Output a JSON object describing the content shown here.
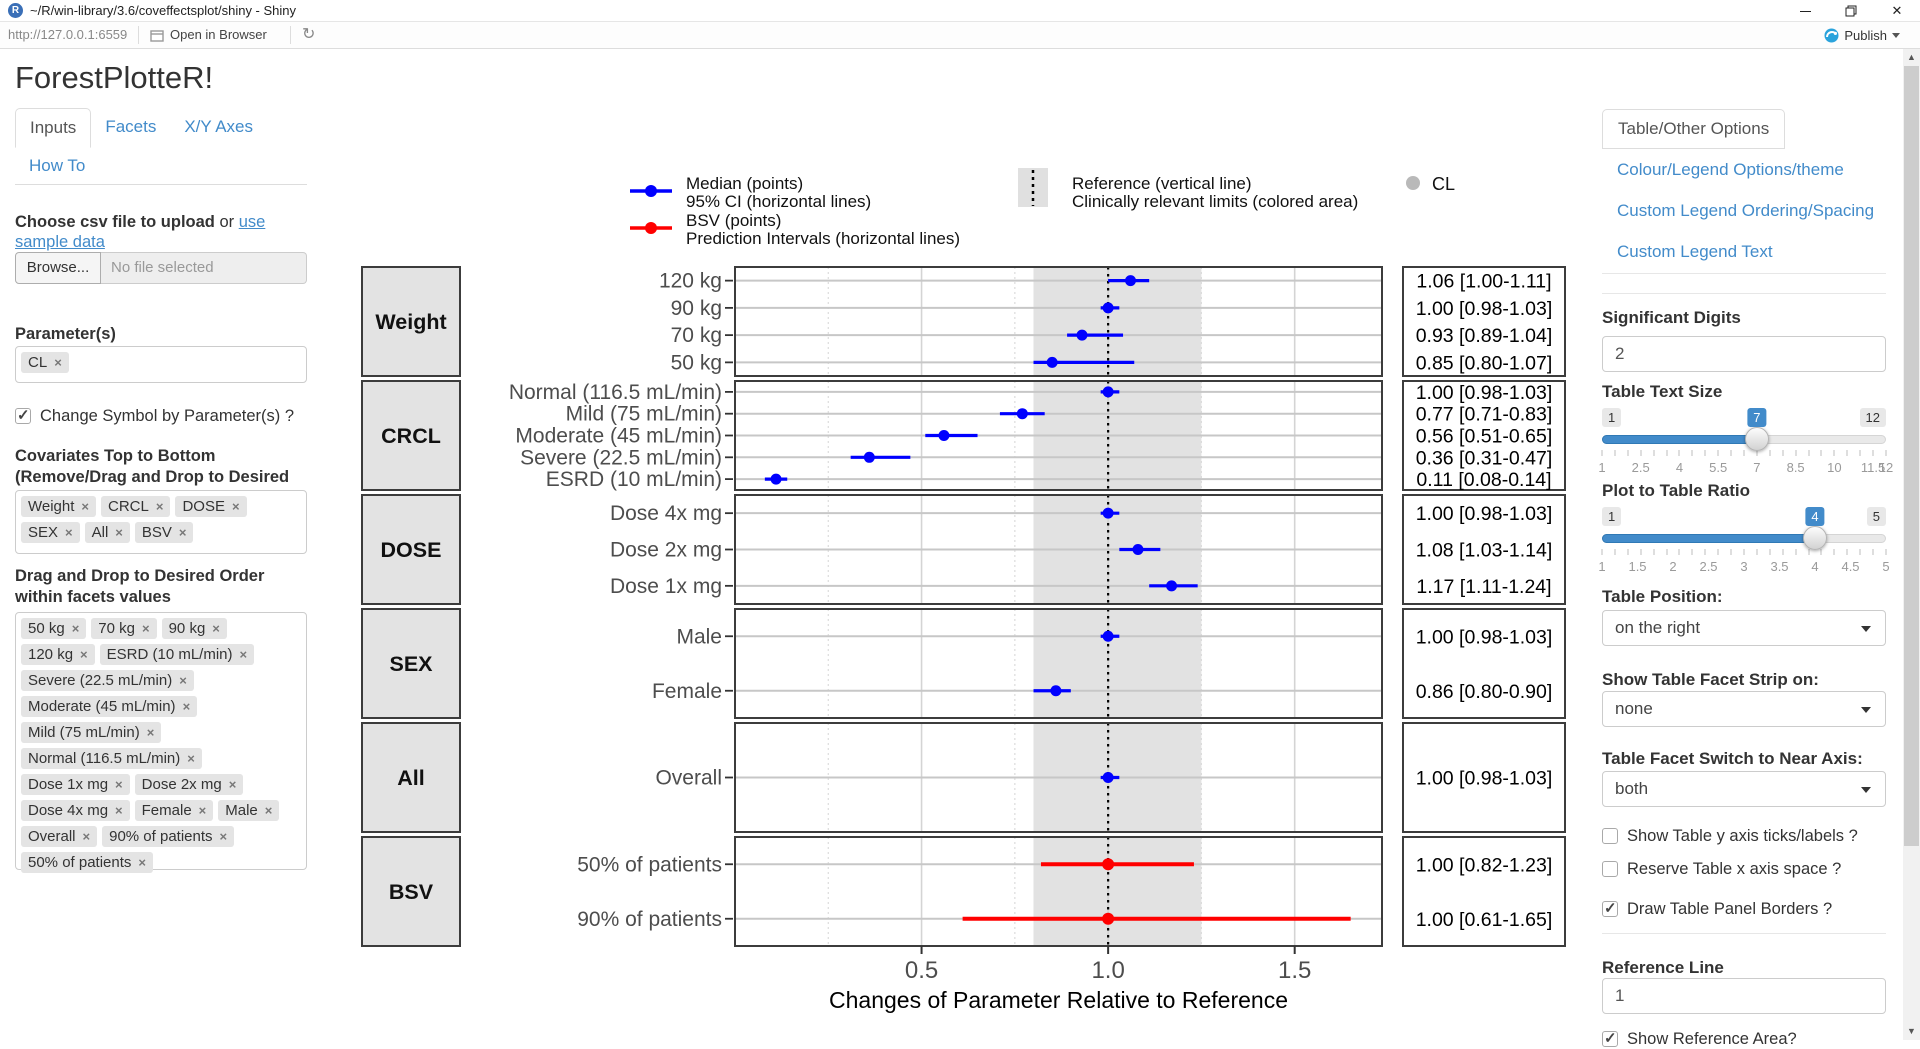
{
  "window": {
    "title": "~/R/win-library/3.6/coveffectsplot/shiny - Shiny",
    "url": "http://127.0.0.1:6559",
    "open_in_browser": "Open in Browser",
    "publish": "Publish"
  },
  "sidebar": {
    "title": "ForestPlotteR!",
    "tabs": [
      "Inputs",
      "Facets",
      "X/Y Axes",
      "How To"
    ],
    "upload_label_bold": "Choose csv file to upload",
    "upload_label_or": " or ",
    "upload_link": "use sample data",
    "browse_button": "Browse...",
    "file_placeholder": "No file selected",
    "parameters_label": "Parameter(s)",
    "parameter_tags": [
      "CL"
    ],
    "change_symbol_label": "Change Symbol by Parameter(s) ?",
    "change_symbol_checked": true,
    "covariates_label": "Covariates Top to Bottom (Remove/Drag and Drop to Desired Order):",
    "covariate_tags": [
      "Weight",
      "CRCL",
      "DOSE",
      "SEX",
      "All",
      "BSV"
    ],
    "facet_values_label": "Drag and Drop to Desired Order within facets values",
    "facet_value_tags": [
      "50 kg",
      "70 kg",
      "90 kg",
      "120 kg",
      "ESRD (10 mL/min)",
      "Severe (22.5 mL/min)",
      "Moderate (45 mL/min)",
      "Mild (75 mL/min)",
      "Normal (116.5 mL/min)",
      "Dose 1x mg",
      "Dose 2x mg",
      "Dose 4x mg",
      "Female",
      "Male",
      "Overall",
      "90% of patients",
      "50% of patients"
    ]
  },
  "rightbar": {
    "tab": "Table/Other Options",
    "links": [
      "Colour/Legend Options/theme",
      "Custom Legend Ordering/Spacing",
      "Custom Legend Text"
    ],
    "significant_digits_label": "Significant Digits",
    "significant_digits_value": "2",
    "table_text_size": {
      "label": "Table Text Size",
      "min": 1,
      "max": 12,
      "value": 7,
      "ticks": [
        "1",
        "2.5",
        "4",
        "5.5",
        "7",
        "8.5",
        "10",
        "11.5",
        "12"
      ]
    },
    "plot_table_ratio": {
      "label": "Plot to Table Ratio",
      "min": 1,
      "max": 5,
      "value": 4,
      "ticks": [
        "1",
        "1.5",
        "2",
        "2.5",
        "3",
        "3.5",
        "4",
        "4.5",
        "5"
      ]
    },
    "table_position_label": "Table Position:",
    "table_position_value": "on the right",
    "facet_strip_label": "Show Table Facet Strip on:",
    "facet_strip_value": "none",
    "facet_switch_label": "Table Facet Switch to Near Axis:",
    "facet_switch_value": "both",
    "checkboxes": [
      {
        "label": "Show Table y axis ticks/labels ?",
        "checked": false
      },
      {
        "label": "Reserve Table x axis space ?",
        "checked": false
      },
      {
        "label": "Draw Table Panel Borders ?",
        "checked": true
      }
    ],
    "reference_line_label": "Reference Line",
    "reference_line_value": "1",
    "show_reference_area_label": "Show Reference Area?"
  },
  "chart_data": {
    "type": "forest",
    "xlabel": "Changes of Parameter Relative to Reference",
    "x_ticks": [
      "0.5",
      "1.0",
      "1.5"
    ],
    "x_range": [
      0,
      1.734
    ],
    "reference_line": 1.0,
    "reference_area": [
      0.8,
      1.25
    ],
    "colors": {
      "median": "#0000ff",
      "bsv": "#ff0000",
      "area": "#e2e2e2"
    },
    "legend": {
      "median": [
        "Median (points)",
        "95% CI (horizontal lines)"
      ],
      "bsv": [
        "BSV (points)",
        "Prediction Intervals (horizontal lines)"
      ],
      "reference": [
        "Reference (vertical line)",
        "Clinically relevant limits (colored area)"
      ],
      "shape": "CL"
    },
    "facets": [
      {
        "label": "Weight",
        "series": "median",
        "rows": [
          {
            "label": "120 kg",
            "mid": 1.06,
            "lo": 1.0,
            "hi": 1.11,
            "text": "1.06 [1.00-1.11]"
          },
          {
            "label": "90 kg",
            "mid": 1.0,
            "lo": 0.98,
            "hi": 1.03,
            "text": "1.00 [0.98-1.03]"
          },
          {
            "label": "70 kg",
            "mid": 0.93,
            "lo": 0.89,
            "hi": 1.04,
            "text": "0.93 [0.89-1.04]"
          },
          {
            "label": "50 kg",
            "mid": 0.85,
            "lo": 0.8,
            "hi": 1.07,
            "text": "0.85 [0.80-1.07]"
          }
        ]
      },
      {
        "label": "CRCL",
        "series": "median",
        "rows": [
          {
            "label": "Normal (116.5 mL/min)",
            "mid": 1.0,
            "lo": 0.98,
            "hi": 1.03,
            "text": "1.00 [0.98-1.03]"
          },
          {
            "label": "Mild (75 mL/min)",
            "mid": 0.77,
            "lo": 0.71,
            "hi": 0.83,
            "text": "0.77 [0.71-0.83]"
          },
          {
            "label": "Moderate (45 mL/min)",
            "mid": 0.56,
            "lo": 0.51,
            "hi": 0.65,
            "text": "0.56 [0.51-0.65]"
          },
          {
            "label": "Severe (22.5 mL/min)",
            "mid": 0.36,
            "lo": 0.31,
            "hi": 0.47,
            "text": "0.36 [0.31-0.47]"
          },
          {
            "label": "ESRD (10 mL/min)",
            "mid": 0.11,
            "lo": 0.08,
            "hi": 0.14,
            "text": "0.11 [0.08-0.14]"
          }
        ]
      },
      {
        "label": "DOSE",
        "series": "median",
        "rows": [
          {
            "label": "Dose 4x mg",
            "mid": 1.0,
            "lo": 0.98,
            "hi": 1.03,
            "text": "1.00 [0.98-1.03]"
          },
          {
            "label": "Dose 2x mg",
            "mid": 1.08,
            "lo": 1.03,
            "hi": 1.14,
            "text": "1.08 [1.03-1.14]"
          },
          {
            "label": "Dose 1x mg",
            "mid": 1.17,
            "lo": 1.11,
            "hi": 1.24,
            "text": "1.17 [1.11-1.24]"
          }
        ]
      },
      {
        "label": "SEX",
        "series": "median",
        "rows": [
          {
            "label": "Male",
            "mid": 1.0,
            "lo": 0.98,
            "hi": 1.03,
            "text": "1.00 [0.98-1.03]"
          },
          {
            "label": "Female",
            "mid": 0.86,
            "lo": 0.8,
            "hi": 0.9,
            "text": "0.86 [0.80-0.90]"
          }
        ]
      },
      {
        "label": "All",
        "series": "median",
        "rows": [
          {
            "label": "Overall",
            "mid": 1.0,
            "lo": 0.98,
            "hi": 1.03,
            "text": "1.00 [0.98-1.03]"
          }
        ]
      },
      {
        "label": "BSV",
        "series": "bsv",
        "rows": [
          {
            "label": "50% of patients",
            "mid": 1.0,
            "lo": 0.82,
            "hi": 1.23,
            "text": "1.00 [0.82-1.23]"
          },
          {
            "label": "90% of patients",
            "mid": 1.0,
            "lo": 0.61,
            "hi": 1.65,
            "text": "1.00 [0.61-1.65]"
          }
        ]
      }
    ]
  }
}
